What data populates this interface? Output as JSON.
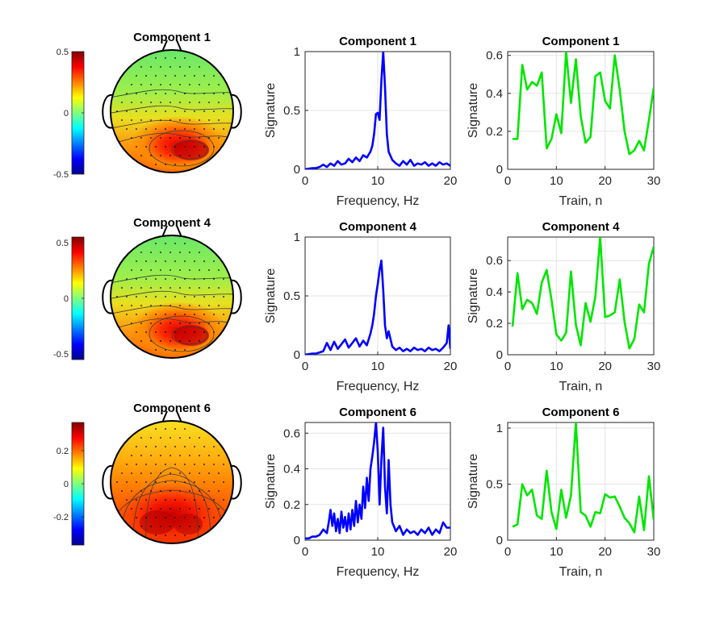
{
  "colors": {
    "spectrum_line": "#0000ff",
    "train_line": "#00e600",
    "axis": "#262626",
    "grid": "#e3e3e3",
    "contour": "#3a3a3a",
    "electrode": "#000000"
  },
  "rows": [
    {
      "topo": {
        "title": "Component 1",
        "colorbar": {
          "min": -0.5,
          "max": 0.5,
          "tick_values": [
            0.5,
            0,
            -0.5
          ],
          "tick_labels": [
            "0.5",
            "0",
            "-0.5"
          ]
        },
        "pattern": "occipital-right"
      },
      "spectrum": {
        "title": "Component 1",
        "xlabel": "Frequency, Hz",
        "ylabel": "Signature",
        "xlim": [
          0,
          20
        ],
        "ylim": [
          0,
          1
        ],
        "xticks": [
          0,
          10,
          20
        ],
        "xtick_labels": [
          "0",
          "10",
          "20"
        ],
        "yticks": [
          0,
          0.5,
          1
        ],
        "ytick_labels": [
          "0",
          "0.5",
          "1"
        ]
      },
      "train": {
        "title": "Component 1",
        "xlabel": "Train, n",
        "ylabel": "Signature",
        "xlim": [
          0,
          30
        ],
        "ylim": [
          0,
          0.62
        ],
        "xticks": [
          0,
          10,
          20,
          30
        ],
        "xtick_labels": [
          "0",
          "10",
          "20",
          "30"
        ],
        "yticks": [
          0,
          0.2,
          0.4,
          0.6
        ],
        "ytick_labels": [
          "0",
          "0.2",
          "0.4",
          "0.6"
        ]
      }
    },
    {
      "topo": {
        "title": "Component 4",
        "colorbar": {
          "min": -0.55,
          "max": 0.55,
          "tick_values": [
            0.5,
            0,
            -0.5
          ],
          "tick_labels": [
            "0.5",
            "0",
            "-0.5"
          ]
        },
        "pattern": "occipital-right"
      },
      "spectrum": {
        "title": "Component 4",
        "xlabel": "Frequency, Hz",
        "ylabel": "Signature",
        "xlim": [
          0,
          20
        ],
        "ylim": [
          0,
          1
        ],
        "xticks": [
          0,
          10,
          20
        ],
        "xtick_labels": [
          "0",
          "10",
          "20"
        ],
        "yticks": [
          0,
          0.5,
          1
        ],
        "ytick_labels": [
          "0",
          "0.5",
          "1"
        ]
      },
      "train": {
        "title": "Component 4",
        "xlabel": "Train, n",
        "ylabel": "Signature",
        "xlim": [
          0,
          30
        ],
        "ylim": [
          0,
          0.75
        ],
        "xticks": [
          0,
          10,
          20,
          30
        ],
        "xtick_labels": [
          "0",
          "10",
          "20",
          "30"
        ],
        "yticks": [
          0,
          0.2,
          0.4,
          0.6
        ],
        "ytick_labels": [
          "0",
          "0.2",
          "0.4",
          "0.6"
        ]
      }
    },
    {
      "topo": {
        "title": "Component 6",
        "colorbar": {
          "min": -0.37,
          "max": 0.37,
          "tick_values": [
            0.2,
            0,
            -0.2
          ],
          "tick_labels": [
            "0.2",
            "0",
            "-0.2"
          ]
        },
        "pattern": "occipital-bilateral"
      },
      "spectrum": {
        "title": "Component 6",
        "xlabel": "Frequency, Hz",
        "ylabel": "Signature",
        "xlim": [
          0,
          20
        ],
        "ylim": [
          0,
          0.66
        ],
        "xticks": [
          0,
          10,
          20
        ],
        "xtick_labels": [
          "0",
          "10",
          "20"
        ],
        "yticks": [
          0,
          0.2,
          0.4,
          0.6
        ],
        "ytick_labels": [
          "0",
          "0.2",
          "0.4",
          "0.6"
        ]
      },
      "train": {
        "title": "Component 6",
        "xlabel": "Train, n",
        "ylabel": "Signature",
        "xlim": [
          0,
          30
        ],
        "ylim": [
          0,
          1.05
        ],
        "xticks": [
          0,
          10,
          20,
          30
        ],
        "xtick_labels": [
          "0",
          "10",
          "20",
          "30"
        ],
        "yticks": [
          0,
          0.5,
          1
        ],
        "ytick_labels": [
          "0",
          "0.5",
          "1"
        ]
      }
    }
  ],
  "chart_data": [
    {
      "type": "line",
      "title": "Component 1",
      "xlabel": "Frequency, Hz",
      "ylabel": "Signature",
      "xlim": [
        0,
        20
      ],
      "ylim": [
        0,
        1
      ],
      "grid": true,
      "series": [
        {
          "x": [
            0,
            0.5,
            1,
            1.5,
            2,
            2.5,
            3,
            3.5,
            4,
            4.5,
            5,
            5.5,
            6,
            6.5,
            7,
            7.5,
            8,
            8.5,
            9,
            9.25,
            9.5,
            9.75,
            10,
            10.25,
            10.5,
            10.75,
            11,
            11.25,
            11.5,
            12,
            12.5,
            13,
            13.5,
            14,
            14.5,
            15,
            15.5,
            16,
            16.5,
            17,
            17.5,
            18,
            18.5,
            19,
            19.5,
            20
          ],
          "y": [
            0,
            0.005,
            0.01,
            0.01,
            0.02,
            0.04,
            0.02,
            0.05,
            0.03,
            0.07,
            0.04,
            0.05,
            0.09,
            0.06,
            0.1,
            0.07,
            0.12,
            0.1,
            0.15,
            0.2,
            0.3,
            0.47,
            0.48,
            0.42,
            0.75,
            1.0,
            0.7,
            0.3,
            0.15,
            0.08,
            0.05,
            0.03,
            0.07,
            0.04,
            0.08,
            0.03,
            0.05,
            0.04,
            0.06,
            0.03,
            0.05,
            0.03,
            0.06,
            0.04,
            0.05,
            0.03
          ]
        }
      ]
    },
    {
      "type": "line",
      "title": "Component 1",
      "xlabel": "Train, n",
      "ylabel": "Signature",
      "xlim": [
        0,
        30
      ],
      "ylim": [
        0,
        0.62
      ],
      "grid": true,
      "series": [
        {
          "x": [
            1,
            2,
            3,
            4,
            5,
            6,
            7,
            8,
            9,
            10,
            11,
            12,
            13,
            14,
            15,
            16,
            17,
            18,
            19,
            20,
            21,
            22,
            23,
            24,
            25,
            26,
            27,
            28,
            29,
            30
          ],
          "y": [
            0.16,
            0.16,
            0.55,
            0.42,
            0.46,
            0.44,
            0.51,
            0.11,
            0.16,
            0.29,
            0.19,
            0.62,
            0.35,
            0.58,
            0.28,
            0.14,
            0.17,
            0.49,
            0.51,
            0.36,
            0.32,
            0.6,
            0.42,
            0.2,
            0.08,
            0.1,
            0.15,
            0.1,
            0.26,
            0.43
          ]
        }
      ]
    },
    {
      "type": "line",
      "title": "Component 4",
      "xlabel": "Frequency, Hz",
      "ylabel": "Signature",
      "xlim": [
        0,
        20
      ],
      "ylim": [
        0,
        1
      ],
      "grid": true,
      "series": [
        {
          "x": [
            0,
            0.5,
            1,
            1.5,
            2,
            2.5,
            3,
            3.5,
            4,
            4.5,
            5,
            5.5,
            6,
            6.5,
            7,
            7.5,
            8,
            8.5,
            9,
            9.25,
            9.5,
            9.75,
            10,
            10.25,
            10.5,
            10.75,
            11,
            11.25,
            11.5,
            12,
            12.5,
            13,
            13.5,
            14,
            14.5,
            15,
            15.5,
            16,
            16.5,
            17,
            17.5,
            18,
            18.5,
            19,
            19.5,
            19.75,
            20
          ],
          "y": [
            0,
            0.005,
            0.01,
            0.01,
            0.02,
            0.03,
            0.1,
            0.04,
            0.11,
            0.05,
            0.09,
            0.13,
            0.06,
            0.1,
            0.14,
            0.07,
            0.12,
            0.08,
            0.18,
            0.25,
            0.35,
            0.5,
            0.6,
            0.72,
            0.8,
            0.55,
            0.25,
            0.14,
            0.2,
            0.07,
            0.04,
            0.06,
            0.03,
            0.05,
            0.03,
            0.06,
            0.04,
            0.05,
            0.03,
            0.06,
            0.04,
            0.05,
            0.03,
            0.06,
            0.1,
            0.25,
            0.05
          ]
        }
      ]
    },
    {
      "type": "line",
      "title": "Component 4",
      "xlabel": "Train, n",
      "ylabel": "Signature",
      "xlim": [
        0,
        30
      ],
      "ylim": [
        0,
        0.75
      ],
      "grid": true,
      "series": [
        {
          "x": [
            1,
            2,
            3,
            4,
            5,
            6,
            7,
            8,
            9,
            10,
            11,
            12,
            13,
            14,
            15,
            16,
            17,
            18,
            19,
            20,
            21,
            22,
            23,
            24,
            25,
            26,
            27,
            28,
            29,
            30
          ],
          "y": [
            0.18,
            0.52,
            0.29,
            0.35,
            0.33,
            0.26,
            0.46,
            0.54,
            0.35,
            0.13,
            0.09,
            0.14,
            0.53,
            0.19,
            0.06,
            0.33,
            0.21,
            0.37,
            0.75,
            0.24,
            0.25,
            0.27,
            0.48,
            0.21,
            0.04,
            0.1,
            0.32,
            0.27,
            0.58,
            0.69
          ]
        }
      ]
    },
    {
      "type": "line",
      "title": "Component 6",
      "xlabel": "Frequency, Hz",
      "ylabel": "Signature",
      "xlim": [
        0,
        20
      ],
      "ylim": [
        0,
        0.66
      ],
      "grid": true,
      "series": [
        {
          "x": [
            0,
            0.5,
            1,
            1.5,
            2,
            2.5,
            3,
            3.25,
            3.5,
            3.75,
            4,
            4.25,
            4.5,
            4.75,
            5,
            5.25,
            5.5,
            5.75,
            6,
            6.25,
            6.5,
            6.75,
            7,
            7.25,
            7.5,
            7.75,
            8,
            8.25,
            8.5,
            8.75,
            9,
            9.25,
            9.5,
            9.75,
            10,
            10.25,
            10.5,
            10.75,
            11,
            11.25,
            11.5,
            11.75,
            12,
            12.5,
            13,
            13.5,
            14,
            14.5,
            15,
            15.5,
            16,
            16.5,
            17,
            17.5,
            18,
            18.5,
            19,
            19.5,
            20
          ],
          "y": [
            0.01,
            0.01,
            0.02,
            0.02,
            0.03,
            0.06,
            0.04,
            0.1,
            0.17,
            0.08,
            0.15,
            0.05,
            0.12,
            0.04,
            0.16,
            0.07,
            0.13,
            0.05,
            0.15,
            0.06,
            0.17,
            0.08,
            0.22,
            0.1,
            0.2,
            0.12,
            0.3,
            0.18,
            0.35,
            0.22,
            0.4,
            0.47,
            0.55,
            0.66,
            0.5,
            0.2,
            0.45,
            0.63,
            0.3,
            0.15,
            0.45,
            0.2,
            0.1,
            0.05,
            0.08,
            0.03,
            0.06,
            0.04,
            0.05,
            0.03,
            0.06,
            0.04,
            0.07,
            0.03,
            0.06,
            0.04,
            0.1,
            0.07,
            0.07
          ]
        }
      ]
    },
    {
      "type": "line",
      "title": "Component 6",
      "xlabel": "Train, n",
      "ylabel": "Signature",
      "xlim": [
        0,
        30
      ],
      "ylim": [
        0,
        1.05
      ],
      "grid": true,
      "series": [
        {
          "x": [
            1,
            2,
            3,
            4,
            5,
            6,
            7,
            8,
            9,
            10,
            11,
            12,
            13,
            14,
            15,
            16,
            17,
            18,
            19,
            20,
            21,
            22,
            23,
            24,
            25,
            26,
            27,
            28,
            29,
            30
          ],
          "y": [
            0.12,
            0.14,
            0.5,
            0.4,
            0.45,
            0.22,
            0.19,
            0.62,
            0.25,
            0.1,
            0.45,
            0.2,
            0.4,
            1.05,
            0.25,
            0.22,
            0.12,
            0.25,
            0.24,
            0.41,
            0.38,
            0.39,
            0.3,
            0.2,
            0.15,
            0.07,
            0.39,
            0.09,
            0.57,
            0.18
          ]
        }
      ]
    }
  ]
}
